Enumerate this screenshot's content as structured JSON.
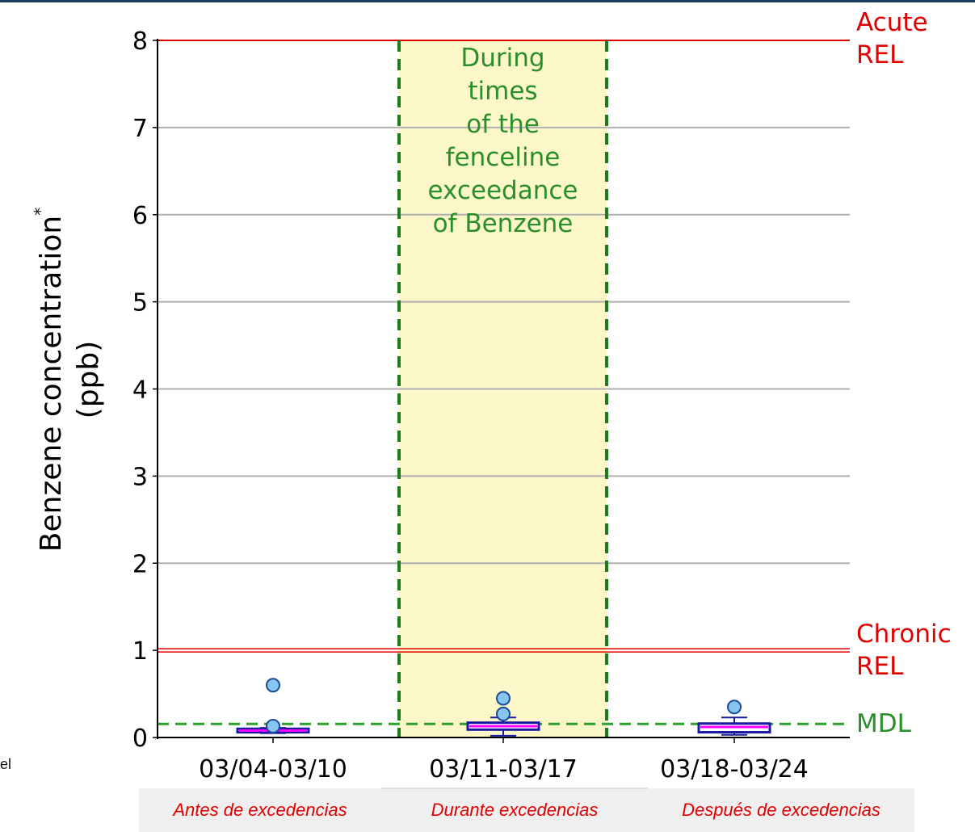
{
  "colors": {
    "top_border": "#1f3a5f",
    "grid": "#b0b0b0",
    "axis": "#000000",
    "rel_line": "#e00000",
    "rel_text": "#e00000",
    "mdl_line": "#2ca02c",
    "mdl_text": "#2a8f2a",
    "shade": "#fbf7c8",
    "period_boundary": "#1f7a1f",
    "box_edge": "#1a1aa0",
    "box_fill": "#ffffff",
    "median": "#ff00ff",
    "flier_fill": "#87c5f0",
    "flier_edge": "#1a4a9a",
    "label_text": "#e00000"
  },
  "y_axis_title": {
    "line1": "Benzene concentration",
    "line1_sup": "*",
    "line2": "(ppb)"
  },
  "left_fragment": "el",
  "spanish_labels": [
    "Antes de excedencias",
    "Durante excedencias",
    "Después de excedencias"
  ],
  "chart_data": {
    "type": "box",
    "ylim": [
      0,
      8
    ],
    "yticks": [
      "0",
      "1",
      "2",
      "3",
      "4",
      "5",
      "6",
      "7",
      "8"
    ],
    "grid": true,
    "categories": [
      "03/04-03/10",
      "03/11-03/17",
      "03/18-03/24"
    ],
    "boxes": [
      {
        "whisker_low": 0.05,
        "q1": 0.06,
        "median": 0.08,
        "q3": 0.1,
        "whisker_high": 0.11,
        "fliers": [
          0.13,
          0.6
        ]
      },
      {
        "whisker_low": 0.02,
        "q1": 0.09,
        "median": 0.13,
        "q3": 0.17,
        "whisker_high": 0.23,
        "fliers": [
          0.27,
          0.45
        ]
      },
      {
        "whisker_low": 0.03,
        "q1": 0.06,
        "median": 0.12,
        "q3": 0.16,
        "whisker_high": 0.23,
        "fliers": [
          0.35
        ]
      }
    ],
    "reference_lines": [
      {
        "label_line1": "Acute",
        "label_line2": "REL",
        "value": 8,
        "style": "solid"
      },
      {
        "label_line1": "Chronic",
        "label_line2": "REL",
        "value": 1,
        "style": "double"
      },
      {
        "label_line1": "MDL",
        "label_line2": "",
        "value": 0.1,
        "style": "dashed"
      }
    ],
    "shaded_period": {
      "category_index": 1,
      "annotation": [
        "During",
        "times",
        "of the",
        "fenceline",
        "exceedance",
        "of Benzene"
      ]
    }
  }
}
